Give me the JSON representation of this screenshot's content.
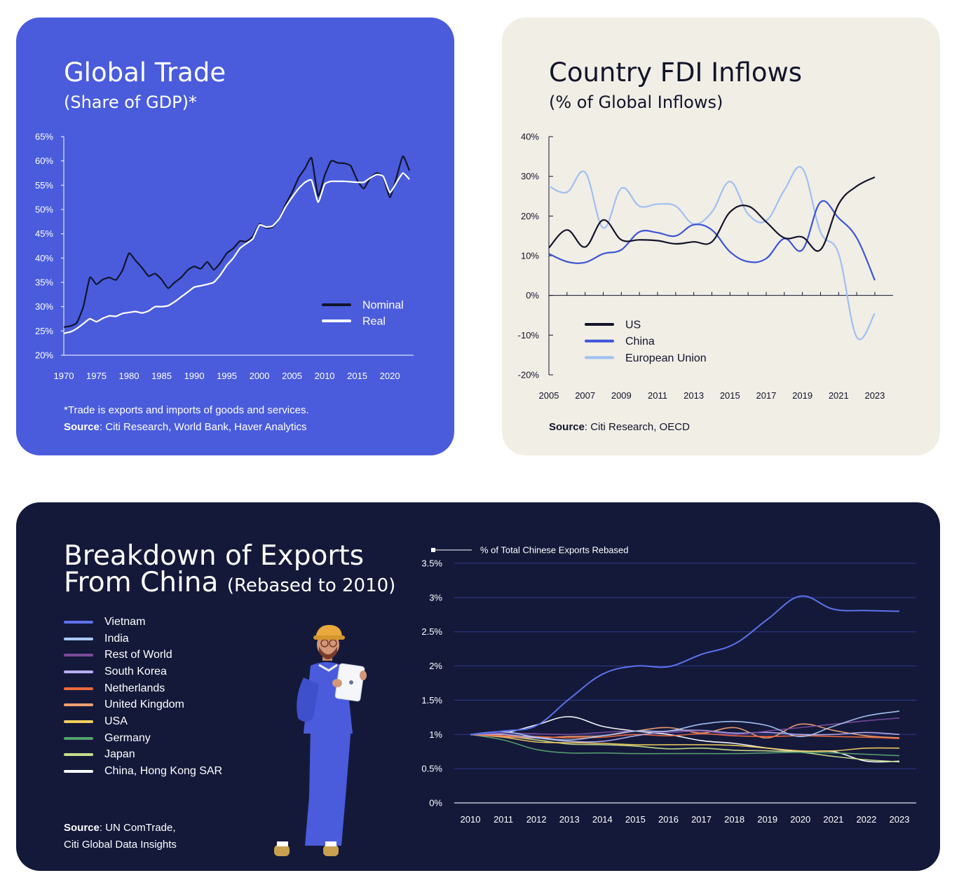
{
  "trade": {
    "title": "Global Trade",
    "subtitle": "(Share of GDP)*",
    "footnote": "*Trade is exports and imports of goods and services.",
    "source_label": "Source",
    "source_text": ": Citi Research, World Bank, Haver Analytics",
    "colors": {
      "background": "#4a5cdc",
      "nominal": "#12142a",
      "real": "#ffffff"
    }
  },
  "fdi": {
    "title": "Country FDI Inflows",
    "subtitle": "(% of Global Inflows)",
    "source_label": "Source",
    "source_text": ": Citi Research, OECD",
    "colors": {
      "background": "#f1eee6",
      "us": "#14142a",
      "china": "#3d55d6",
      "eu": "#9fc0f2"
    }
  },
  "exports": {
    "title_line1": "Breakdown of Exports",
    "title_line2": "From China",
    "title_suffix": "(Rebased to 2010)",
    "chart_caption": "% of Total Chinese Exports Rebased",
    "source_label": "Source",
    "source_line1": ": UN ComTrade,",
    "source_line2": "Citi Global Data Insights",
    "colors": {
      "background": "#14193a"
    }
  },
  "chart_data": [
    {
      "type": "line",
      "title": "Global Trade",
      "subtitle": "(Share of GDP)*",
      "xlim": [
        1970,
        2023
      ],
      "ylim": [
        20,
        65
      ],
      "x_ticks": [
        "1970",
        "1975",
        "1980",
        "1985",
        "1990",
        "1995",
        "2000",
        "2005",
        "2010",
        "2015",
        "2020"
      ],
      "y_ticks": [
        "20%",
        "25%",
        "30%",
        "35%",
        "40%",
        "45%",
        "50%",
        "55%",
        "60%",
        "65%"
      ],
      "legend_position": "lower-right",
      "grid": false,
      "x": [
        1970,
        1971,
        1972,
        1973,
        1974,
        1975,
        1976,
        1977,
        1978,
        1979,
        1980,
        1981,
        1982,
        1983,
        1984,
        1985,
        1986,
        1987,
        1988,
        1989,
        1990,
        1991,
        1992,
        1993,
        1994,
        1995,
        1996,
        1997,
        1998,
        1999,
        2000,
        2001,
        2002,
        2003,
        2004,
        2005,
        2006,
        2007,
        2008,
        2009,
        2010,
        2011,
        2012,
        2013,
        2014,
        2015,
        2016,
        2017,
        2018,
        2019,
        2020,
        2021,
        2022,
        2023
      ],
      "series": [
        {
          "name": "Nominal",
          "color": "#12142a",
          "values": [
            25.8,
            26.0,
            26.7,
            30.0,
            36.0,
            34.6,
            35.6,
            36.0,
            35.5,
            37.5,
            41.0,
            39.5,
            38.0,
            36.3,
            36.8,
            35.6,
            33.8,
            35.0,
            36.0,
            37.5,
            38.3,
            37.8,
            39.2,
            37.6,
            39.0,
            41.0,
            42.0,
            43.5,
            43.4,
            44.5,
            47.0,
            46.2,
            46.4,
            48.0,
            51.0,
            53.5,
            56.5,
            58.5,
            60.6,
            52.8,
            57.0,
            60.0,
            59.6,
            59.5,
            59.0,
            56.0,
            54.3,
            56.5,
            57.5,
            56.7,
            52.5,
            56.5,
            61.0,
            58.0
          ]
        },
        {
          "name": "Real",
          "color": "#ffffff",
          "values": [
            24.5,
            24.8,
            25.5,
            26.5,
            27.5,
            26.9,
            27.6,
            28.1,
            28.0,
            28.6,
            28.8,
            29.0,
            28.7,
            29.1,
            30.0,
            30.0,
            30.2,
            31.0,
            32.0,
            33.0,
            34.0,
            34.3,
            34.6,
            35.0,
            36.5,
            38.5,
            40.0,
            42.0,
            43.0,
            44.0,
            46.8,
            46.4,
            46.6,
            48.0,
            50.5,
            52.5,
            54.3,
            55.6,
            56.0,
            51.5,
            55.2,
            55.8,
            55.8,
            55.8,
            55.7,
            55.6,
            55.6,
            56.5,
            57.2,
            56.8,
            53.5,
            55.5,
            57.5,
            56.2
          ]
        }
      ]
    },
    {
      "type": "line",
      "title": "Country FDI Inflows",
      "subtitle": "(% of Global Inflows)",
      "xlim": [
        2005,
        2023.5
      ],
      "ylim": [
        -20,
        40
      ],
      "x_ticks": [
        "2005",
        "2007",
        "2009",
        "2011",
        "2013",
        "2015",
        "2017",
        "2019",
        "2021",
        "2023"
      ],
      "y_ticks": [
        "-20%",
        "-10%",
        "0%",
        "10%",
        "20%",
        "30%",
        "40%"
      ],
      "legend_position": "lower-left",
      "grid": false,
      "x": [
        2005,
        2006,
        2007,
        2008,
        2009,
        2010,
        2011,
        2012,
        2013,
        2014,
        2015,
        2016,
        2017,
        2018,
        2019,
        2020,
        2021,
        2022,
        2023
      ],
      "series": [
        {
          "name": "US",
          "color": "#14142a",
          "values": [
            12.0,
            16.5,
            12.2,
            19.0,
            14.0,
            14.0,
            13.8,
            13.0,
            13.5,
            13.5,
            21.0,
            22.5,
            18.5,
            14.5,
            14.7,
            11.5,
            23.0,
            27.5,
            29.8
          ]
        },
        {
          "name": "China",
          "color": "#3d55d6",
          "values": [
            10.5,
            8.5,
            8.3,
            10.5,
            11.5,
            16.0,
            15.8,
            15.0,
            17.8,
            16.5,
            11.0,
            8.5,
            9.3,
            14.3,
            11.5,
            23.5,
            19.5,
            14.5,
            3.8
          ]
        },
        {
          "name": "European Union",
          "color": "#9fc0f2",
          "values": [
            27.5,
            26.0,
            31.0,
            17.0,
            27.0,
            22.5,
            23.0,
            22.5,
            18.0,
            21.0,
            28.7,
            20.5,
            18.8,
            26.5,
            32.0,
            16.0,
            10.5,
            -10.5,
            -4.5
          ]
        }
      ]
    },
    {
      "type": "line",
      "title": "Breakdown of Exports From China (Rebased to 2010)",
      "ylabel": "% of Total Chinese Exports Rebased",
      "xlim": [
        2010,
        2023
      ],
      "ylim": [
        0,
        3.5
      ],
      "x_ticks": [
        "2010",
        "2011",
        "2012",
        "2013",
        "2014",
        "2015",
        "2016",
        "2017",
        "2018",
        "2019",
        "2020",
        "2021",
        "2022",
        "2023"
      ],
      "y_ticks": [
        "0%",
        "0.5%",
        "1%",
        "1.5%",
        "2%",
        "2.5%",
        "3%",
        "3.5%"
      ],
      "legend_position": "left",
      "grid": true,
      "x": [
        2010,
        2011,
        2012,
        2013,
        2014,
        2015,
        2016,
        2017,
        2018,
        2019,
        2020,
        2021,
        2022,
        2023
      ],
      "series": [
        {
          "name": "Vietnam",
          "color": "#5c72ea",
          "values": [
            1.0,
            1.05,
            1.13,
            1.52,
            1.88,
            2.0,
            1.99,
            2.17,
            2.32,
            2.68,
            3.02,
            2.83,
            2.81,
            2.8
          ]
        },
        {
          "name": "India",
          "color": "#a9c7f5",
          "values": [
            1.0,
            1.04,
            0.96,
            0.92,
            0.98,
            1.05,
            1.05,
            1.15,
            1.19,
            1.13,
            0.97,
            1.12,
            1.27,
            1.34
          ]
        },
        {
          "name": "Rest of World",
          "color": "#7a4a9c",
          "values": [
            1.0,
            1.02,
            1.01,
            1.0,
            1.03,
            1.05,
            1.03,
            1.05,
            1.0,
            1.05,
            1.1,
            1.15,
            1.2,
            1.24
          ]
        },
        {
          "name": "South Korea",
          "color": "#b6aef0",
          "values": [
            1.0,
            1.0,
            0.95,
            0.9,
            0.9,
            0.98,
            1.05,
            1.06,
            1.02,
            1.03,
            1.0,
            1.0,
            1.03,
            1.0
          ]
        },
        {
          "name": "Netherlands",
          "color": "#ec6a3c",
          "values": [
            1.0,
            0.98,
            0.97,
            0.95,
            0.96,
            1.0,
            0.98,
            1.01,
            0.98,
            0.97,
            0.98,
            0.97,
            0.96,
            0.94
          ]
        },
        {
          "name": "United Kingdom",
          "color": "#f0a070",
          "values": [
            1.0,
            0.97,
            0.95,
            0.97,
            0.98,
            1.05,
            1.1,
            1.02,
            1.1,
            0.95,
            1.15,
            1.06,
            0.98,
            0.95
          ]
        },
        {
          "name": "USA",
          "color": "#f2cf5e",
          "values": [
            1.0,
            0.96,
            0.89,
            0.88,
            0.87,
            0.85,
            0.85,
            0.85,
            0.84,
            0.8,
            0.76,
            0.76,
            0.8,
            0.8
          ]
        },
        {
          "name": "Germany",
          "color": "#55a070",
          "values": [
            1.0,
            0.92,
            0.78,
            0.73,
            0.73,
            0.72,
            0.72,
            0.72,
            0.72,
            0.73,
            0.74,
            0.73,
            0.71,
            0.69
          ]
        },
        {
          "name": "Japan",
          "color": "#c7dd8a",
          "values": [
            1.0,
            0.98,
            0.92,
            0.86,
            0.85,
            0.83,
            0.79,
            0.8,
            0.77,
            0.76,
            0.74,
            0.68,
            0.63,
            0.6
          ]
        },
        {
          "name": "China, Hong Kong SAR",
          "color": "#ffffff",
          "values": [
            1.0,
            1.02,
            1.14,
            1.26,
            1.12,
            1.05,
            1.0,
            0.91,
            0.87,
            0.8,
            0.75,
            0.75,
            0.61,
            0.61
          ]
        }
      ]
    }
  ]
}
